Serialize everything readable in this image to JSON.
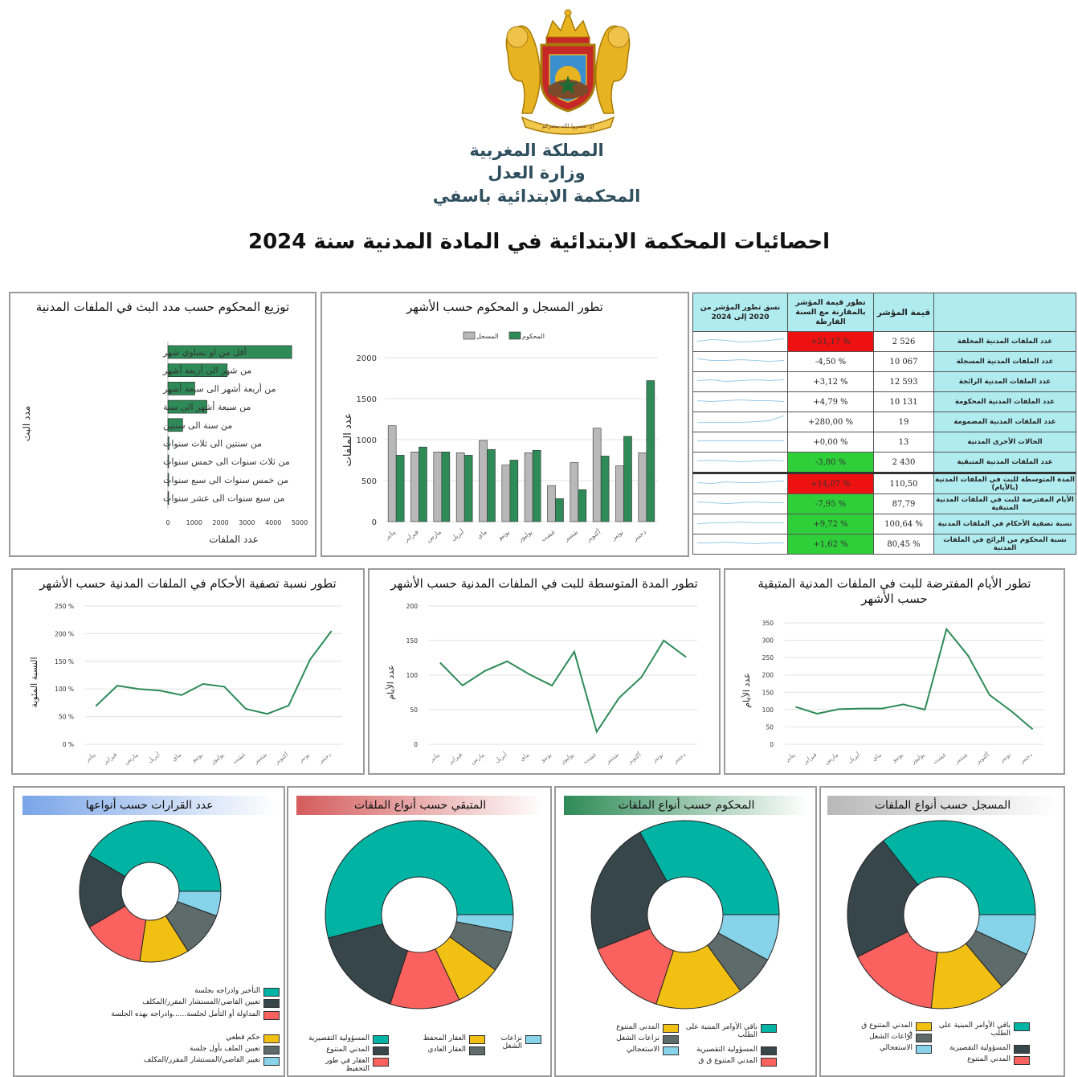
{
  "header": {
    "line1": "المملكة المغربية",
    "line2": "وزارة العدل",
    "line3": "المحكمة الابتدائية باسفي",
    "emblem_motto": "إن تنصروا الله ينصركم",
    "main_title": "احصائيات المحكمة الابتدائية في المادة المدنية سنة 2024"
  },
  "colors": {
    "green": "#2e8b57",
    "gray": "#b8b8b8",
    "teal": "#01b3a3",
    "dark": "#37464a",
    "red": "#fb625f",
    "yellow": "#f2c012",
    "slate": "#5e6b6b",
    "light_blue": "#87d3ea"
  },
  "months": [
    "يناير",
    "فبراير",
    "مارس",
    "أبريل",
    "ماي",
    "يونيو",
    "يوليوز",
    "غشت",
    "شتنبر",
    "أكتوبر",
    "نونبر",
    "دجنبر"
  ],
  "kpi_table": {
    "headers": {
      "trend": "نسق تطور المؤشر من 2020 إلى 2024",
      "change": "تطور قيمة المؤشر بالمقارنة مع السنة الفارطة",
      "value": "قيمة المؤشر"
    },
    "rows": [
      {
        "label": "عدد الملفات المدنية المخلفة",
        "value": "2 526",
        "change": "+51,17 %",
        "status": "red"
      },
      {
        "label": "عدد الملفات المدنية المسجلة",
        "value": "10 067",
        "change": "-4,50 %",
        "status": "none"
      },
      {
        "label": "عدد الملفات المدنية الرائجة",
        "value": "12 593",
        "change": "+3,12 %",
        "status": "none"
      },
      {
        "label": "عدد الملفات المدنية المحكومة",
        "value": "10 131",
        "change": "+4,79 %",
        "status": "none"
      },
      {
        "label": "عدد الملفات المدنية المضمومة",
        "value": "19",
        "change": "+280,00 %",
        "status": "none"
      },
      {
        "label": "الحالات الأخرى المدنية",
        "value": "13",
        "change": "+0,00 %",
        "status": "none"
      },
      {
        "label": "عدد الملفات المدنية المتبقية",
        "value": "2 430",
        "change": "-3,80 %",
        "status": "green"
      },
      {
        "label": "المدة المتوسطة للبت في الملفات المدنية (بالأيام)",
        "value": "110,50",
        "change": "+14,07 %",
        "status": "red"
      },
      {
        "label": "الأيام المفترضة للبت في الملفات المدنية المتبقية",
        "value": "87,79",
        "change": "-7,95 %",
        "status": "green"
      },
      {
        "label": "نسبة تصفية الأحكام في الملفات المدنية",
        "value": "100,64 %",
        "change": "+9,72 %",
        "status": "green"
      },
      {
        "label": "نسبة المحكوم من الرائج في الملفات المدنية",
        "value": "80,45 %",
        "change": "+1,62 %",
        "status": "green"
      }
    ]
  },
  "chart_data": [
    {
      "id": "duration",
      "type": "bar",
      "orientation": "horizontal",
      "title": "توزيع المحكوم حسب مدد البث في الملفات المدنية",
      "xlabel": "عدد الملفات",
      "ylabel": "مدد البث",
      "categories": [
        "أقل من او تساوي شهر",
        "من شهر الى أربعة أشهر",
        "من أربعة أشهر الى سبعة أشهر",
        "من سبعة أشهر الى سنة",
        "من سنة الى سنتين",
        "من سنتين الى ثلاث سنوات",
        "من ثلاث سنوات الى خمس سنوات",
        "من خمس سنوات الى سبع سنوات",
        "من سبع سنوات الى عشر سنوات"
      ],
      "values": [
        4700,
        2250,
        1020,
        1480,
        560,
        40,
        20,
        10,
        5
      ],
      "xlim": [
        0,
        5000
      ],
      "xticks": [
        "0",
        "1000",
        "2000",
        "3000",
        "4000",
        "5000"
      ]
    },
    {
      "id": "monthly",
      "type": "bar",
      "title": "تطور المسجل و المحكوم حسب الأشهر",
      "ylabel": "عدد الملفات",
      "ylim": [
        0,
        2000
      ],
      "yticks": [
        "0",
        "500",
        "1000",
        "1500",
        "2000"
      ],
      "series": [
        {
          "name": "المسجل",
          "values": [
            1170,
            850,
            850,
            840,
            990,
            690,
            840,
            440,
            720,
            1140,
            680,
            840
          ]
        },
        {
          "name": "المحكوم",
          "values": [
            810,
            910,
            850,
            810,
            880,
            750,
            870,
            280,
            390,
            800,
            1040,
            1720
          ]
        }
      ],
      "legend": "top"
    },
    {
      "id": "rate",
      "type": "line",
      "title": "تطور نسبة تصفية الأحكام في الملفات المدنية حسب الأشهر",
      "ylabel": "النسبة المئوية",
      "ylim": [
        0,
        250
      ],
      "yticks": [
        "0 %",
        "50 %",
        "100 %",
        "150 %",
        "200 %",
        "250 %"
      ],
      "values": [
        69,
        106,
        100,
        97,
        89,
        109,
        104,
        64,
        55,
        70,
        153,
        205
      ]
    },
    {
      "id": "avg",
      "type": "line",
      "title": "تطور المدة المتوسطة للبت في الملفات المدنية حسب الأشهر",
      "ylabel": "عدد الأيام",
      "ylim": [
        0,
        200
      ],
      "yticks": [
        "0",
        "50",
        "100",
        "150",
        "200"
      ],
      "values": [
        118,
        85,
        106,
        120,
        101,
        85,
        134,
        18,
        67,
        97,
        150,
        126
      ]
    },
    {
      "id": "assumed",
      "type": "line",
      "title": "تطور الأيام المفترضة للبت في الملفات المدنية المتبقية حسب الأشهر",
      "ylabel": "عدد الأيام",
      "ylim": [
        0,
        350
      ],
      "yticks": [
        "0",
        "50",
        "100",
        "150",
        "200",
        "250",
        "300",
        "350"
      ],
      "values": [
        108,
        88,
        101,
        103,
        103,
        115,
        100,
        332,
        256,
        142,
        96,
        43
      ]
    },
    {
      "id": "decisions",
      "type": "pie",
      "title": "عدد القرارات حسب أنواعها",
      "labels": [
        "التأخير وادراجه بجلسة",
        "تعيين القاضي/المستشار المقرر/المكلف",
        "المداولة أو التأمل لجلسة......وادراجه بهذه الجلسة",
        "حكم قطعي",
        "تعيين الملف بأول جلسة",
        "تغيير القاضي/المستشار المقرر/المكلف"
      ],
      "values": [
        44,
        18,
        15,
        12,
        11,
        6
      ]
    },
    {
      "id": "remaining",
      "type": "pie",
      "title": "المتبقي حسب أنواع الملفات",
      "labels": [
        "المسؤولية التقصيرية",
        "المدني المتنوع",
        "العقار في طور التحفيظ",
        "العقار المحفظ",
        "العقار العادي",
        "نزاعات الشغل"
      ],
      "values": [
        54,
        16,
        12,
        8,
        7,
        3
      ]
    },
    {
      "id": "judged",
      "type": "pie",
      "title": "المحكوم حسب أنواع الملفات",
      "labels": [
        "باقي الأوامر المبنية على الطلب",
        "المسؤولية التقصيرية",
        "المدني المتنوع ق ق",
        "المدني المتنوع",
        "نزاعات الشغل",
        "الاستعجالي"
      ],
      "values": [
        33,
        23,
        14,
        15,
        7,
        8
      ]
    },
    {
      "id": "registered",
      "type": "pie",
      "title": "المسجل حسب أنواع الملفات",
      "labels": [
        "باقي الأوامر المبنية على الطلب",
        "المسؤولية التقصيرية",
        "المدني المتنوع",
        "المدني المتنوع ق ق",
        "نزاعات الشغل",
        "الاستعجالي"
      ],
      "values": [
        36,
        22,
        16,
        13,
        7,
        7
      ]
    }
  ]
}
